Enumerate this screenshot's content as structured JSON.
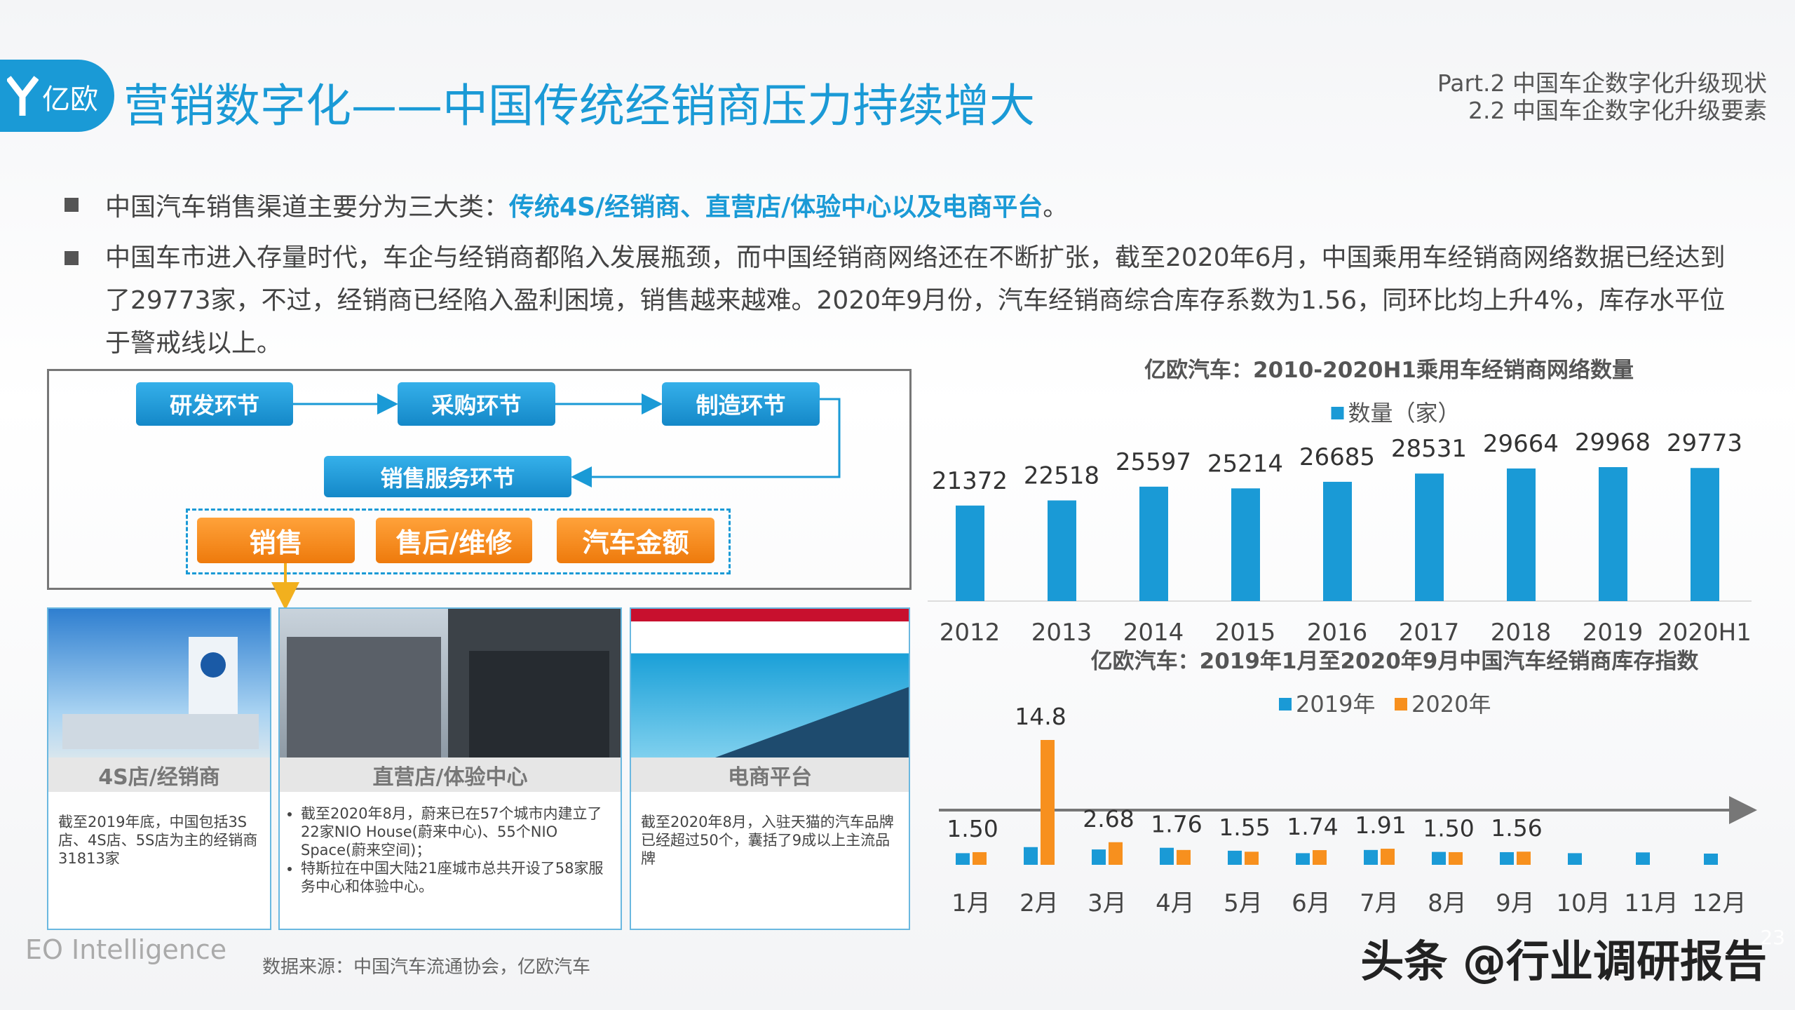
{
  "logo": "亿欧",
  "header": {
    "title": "营销数字化——中国传统经销商压力持续增大",
    "part": "Part.2 中国车企数字化升级现状",
    "section": "2.2 中国车企数字化升级要素"
  },
  "bullets": [
    {
      "text": "中国汽车销售渠道主要分为三大类：",
      "highlight": "传统4S/经销商、直营店/体验中心以及电商平台",
      "end": "。"
    },
    {
      "text": "中国车市进入存量时代，车企与经销商都陷入发展瓶颈，而中国经销商网络还在不断扩张，截至2020年6月，中国乘用车经销商网络数据已经达到了29773家，不过，经销商已经陷入盈利困境，销售越来越难。2020年9月份，汽车经销商综合库存系数为1.56，同环比均上升4%，库存水平位于警戒线以上。"
    }
  ],
  "flow": {
    "steps": [
      "研发环节",
      "采购环节",
      "制造环节",
      "销售服务环节"
    ],
    "channels": [
      "销售",
      "售后/维修",
      "汽车金额"
    ]
  },
  "cards": [
    {
      "title": "4S店/经销商",
      "items": [
        "截至2019年底，中国包括3S店、4S店、5S店为主的经销商31813家"
      ]
    },
    {
      "title": "直营店/体验中心",
      "items": [
        "截至2020年8月，蔚来已在57个城市内建立了22家NIO House(蔚来中心)、55个NIO Space(蔚来空间)；",
        "特斯拉在中国大陆21座城市总共开设了58家服务中心和体验中心。"
      ]
    },
    {
      "title": "电商平台",
      "items": [
        "截至2020年8月，入驻天猫的汽车品牌已经超过50个，囊括了9成以上主流品牌"
      ]
    }
  ],
  "chart_data": [
    {
      "type": "bar",
      "title": "亿欧汽车：2010-2020H1乘用车经销商网络数量",
      "categories": [
        "2012",
        "2013",
        "2014",
        "2015",
        "2016",
        "2017",
        "2018",
        "2019",
        "2020H1"
      ],
      "series": [
        {
          "name": "数量（家）",
          "color": "#1a9ad6",
          "values": [
            21372,
            22518,
            25597,
            25214,
            26685,
            28531,
            29664,
            29968,
            29773
          ]
        }
      ]
    },
    {
      "type": "grouped_bar",
      "title": "亿欧汽车：2019年1月至2020年9月中国汽车经销商库存指数",
      "categories": [
        "1月",
        "2月",
        "3月",
        "4月",
        "5月",
        "6月",
        "7月",
        "8月",
        "9月",
        "10月",
        "11月",
        "12月"
      ],
      "series": [
        {
          "name": "2019年",
          "color": "#1a9ad6",
          "values": [
            1.38,
            2.1,
            1.82,
            2.02,
            1.67,
            1.38,
            1.76,
            1.53,
            1.5,
            1.38,
            1.47,
            1.33
          ]
        },
        {
          "name": "2020年",
          "color": "#f7901e",
          "values": [
            1.5,
            14.8,
            2.68,
            1.76,
            1.55,
            1.74,
            1.91,
            1.5,
            1.56,
            null,
            null,
            null
          ],
          "value_labels": [
            "1.50",
            "14.8",
            "2.68",
            "1.76",
            "1.55",
            "1.74",
            "1.91",
            "1.50",
            "1.56",
            null,
            null,
            null
          ]
        }
      ]
    }
  ],
  "footer": {
    "brand": "EO Intelligence",
    "source": "数据来源：中国汽车流通协会，亿欧汽车",
    "watermark": "头条 @行业调研报告",
    "page": "23"
  }
}
